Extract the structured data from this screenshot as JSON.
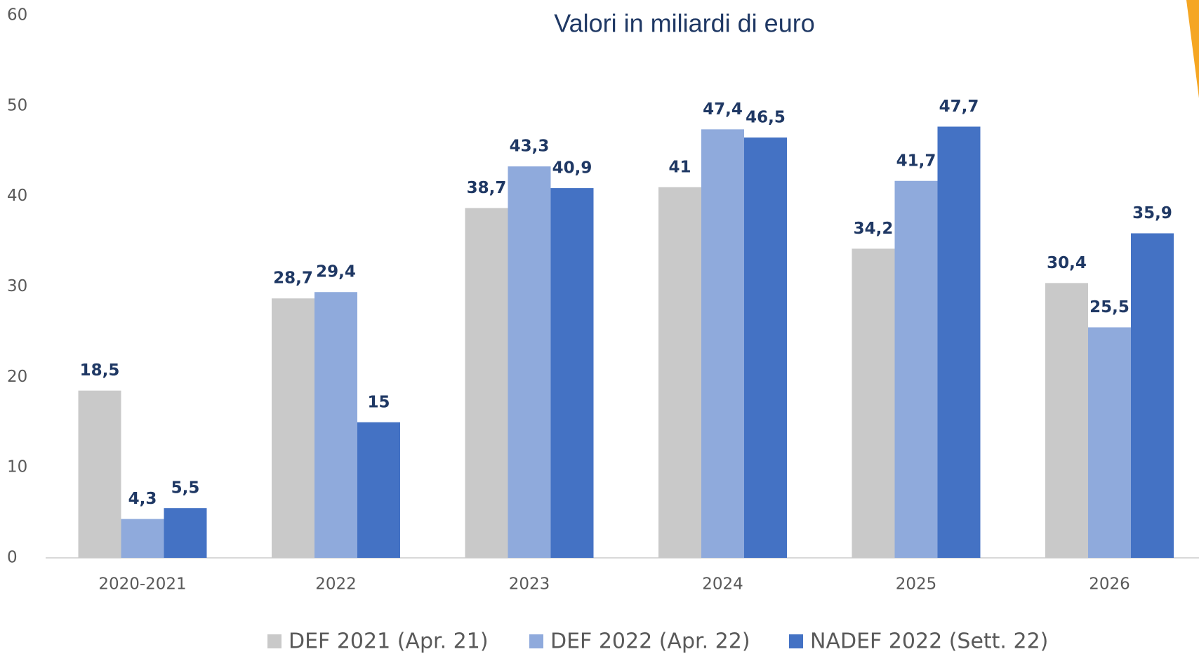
{
  "chart_data": {
    "type": "bar",
    "subtitle": "Valori in miliardi di euro",
    "categories": [
      "2020-2021",
      "2022",
      "2023",
      "2024",
      "2025",
      "2026"
    ],
    "series": [
      {
        "name": "DEF 2021 (Apr. 21)",
        "color": "#c9c9c9",
        "values": [
          18.5,
          28.7,
          38.7,
          41,
          34.2,
          30.4
        ],
        "value_labels": [
          "18,5",
          "28,7",
          "38,7",
          "41",
          "34,2",
          "30,4"
        ]
      },
      {
        "name": "DEF 2022 (Apr. 22)",
        "color": "#8faadc",
        "values": [
          4.3,
          29.4,
          43.3,
          47.4,
          41.7,
          25.5
        ],
        "value_labels": [
          "4,3",
          "29,4",
          "43,3",
          "47,4",
          "41,7",
          "25,5"
        ]
      },
      {
        "name": "NADEF 2022 (Sett. 22)",
        "color": "#4472c4",
        "values": [
          5.5,
          15,
          40.9,
          46.5,
          47.7,
          35.9
        ],
        "value_labels": [
          "5,5",
          "15",
          "40,9",
          "46,5",
          "47,7",
          "35,9"
        ]
      }
    ],
    "ylim": [
      0,
      60
    ],
    "yticks": [
      0,
      10,
      20,
      30,
      40,
      50,
      60
    ],
    "grid": false,
    "legend": "bottom"
  }
}
